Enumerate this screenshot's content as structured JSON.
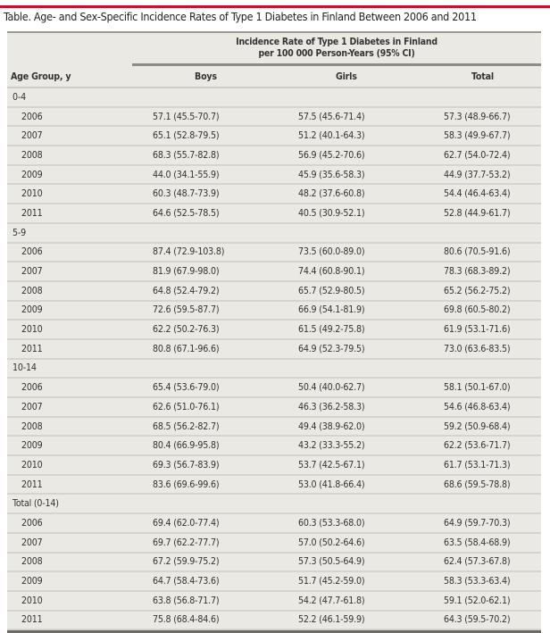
{
  "title": "Table. Age- and Sex-Specific Incidence Rates of Type 1 Diabetes in Finland Between 2006 and 2011",
  "header": {
    "spanner_line1": "Incidence Rate of Type 1 Diabetes in Finland",
    "spanner_line2": "per 100 000 Person-Years (95% CI)",
    "columns": [
      "Age Group, y",
      "Boys",
      "Girls",
      "Total"
    ]
  },
  "groups": [
    {
      "label": "0-4",
      "rows": [
        [
          "2006",
          "57.1 (45.5-70.7)",
          "57.5 (45.6-71.4)",
          "57.3 (48.9-66.7)"
        ],
        [
          "2007",
          "65.1 (52.8-79.5)",
          "51.2 (40.1-64.3)",
          "58.3 (49.9-67.7)"
        ],
        [
          "2008",
          "68.3 (55.7-82.8)",
          "56.9 (45.2-70.6)",
          "62.7 (54.0-72.4)"
        ],
        [
          "2009",
          "44.0 (34.1-55.9)",
          "45.9 (35.6-58.3)",
          "44.9 (37.7-53.2)"
        ],
        [
          "2010",
          "60.3 (48.7-73.9)",
          "48.2 (37.6-60.8)",
          "54.4 (46.4-63.4)"
        ],
        [
          "2011",
          "64.6 (52.5-78.5)",
          "40.5 (30.9-52.1)",
          "52.8 (44.9-61.7)"
        ]
      ]
    },
    {
      "label": "5-9",
      "rows": [
        [
          "2006",
          "87.4 (72.9-103.8)",
          "73.5 (60.0-89.0)",
          "80.6 (70.5-91.6)"
        ],
        [
          "2007",
          "81.9 (67.9-98.0)",
          "74.4 (60.8-90.1)",
          "78.3 (68.3-89.2)"
        ],
        [
          "2008",
          "64.8 (52.4-79.2)",
          "65.7 (52.9-80.5)",
          "65.2 (56.2-75.2)"
        ],
        [
          "2009",
          "72.6 (59.5-87.7)",
          "66.9 (54.1-81.9)",
          "69.8 (60.5-80.2)"
        ],
        [
          "2010",
          "62.2 (50.2-76.3)",
          "61.5 (49.2-75.8)",
          "61.9 (53.1-71.6)"
        ],
        [
          "2011",
          "80.8 (67.1-96.6)",
          "64.9 (52.3-79.5)",
          "73.0 (63.6-83.5)"
        ]
      ]
    },
    {
      "label": "10-14",
      "rows": [
        [
          "2006",
          "65.4 (53.6-79.0)",
          "50.4 (40.0-62.7)",
          "58.1 (50.1-67.0)"
        ],
        [
          "2007",
          "62.6 (51.0-76.1)",
          "46.3 (36.2-58.3)",
          "54.6 (46.8-63.4)"
        ],
        [
          "2008",
          "68.5 (56.2-82.7)",
          "49.4 (38.9-62.0)",
          "59.2 (50.9-68.4)"
        ],
        [
          "2009",
          "80.4 (66.9-95.8)",
          "43.2 (33.3-55.2)",
          "62.2 (53.6-71.7)"
        ],
        [
          "2010",
          "69.3 (56.7-83.9)",
          "53.7 (42.5-67.1)",
          "61.7 (53.1-71.3)"
        ],
        [
          "2011",
          "83.6 (69.6-99.6)",
          "53.0 (41.8-66.4)",
          "68.6 (59.5-78.8)"
        ]
      ]
    },
    {
      "label": "Total (0-14)",
      "rows": [
        [
          "2006",
          "69.4 (62.0-77.4)",
          "60.3 (53.3-68.0)",
          "64.9 (59.7-70.3)"
        ],
        [
          "2007",
          "69.7 (62.2-77.7)",
          "57.0 (50.2-64.6)",
          "63.5 (58.4-68.9)"
        ],
        [
          "2008",
          "67.2 (59.9-75.2)",
          "57.3 (50.5-64.9)",
          "62.4 (57.3-67.8)"
        ],
        [
          "2009",
          "64.7 (58.4-73.6)",
          "51.7 (45.2-59.0)",
          "58.3 (53.3-63.4)"
        ],
        [
          "2010",
          "63.8 (56.8-71.7)",
          "54.2 (47.7-61.8)",
          "59.1 (52.0-62.1)"
        ],
        [
          "2011",
          "75.8 (68.4-84.6)",
          "52.2 (46.1-59.9)",
          "64.3 (59.5-70.2)"
        ]
      ]
    }
  ]
}
